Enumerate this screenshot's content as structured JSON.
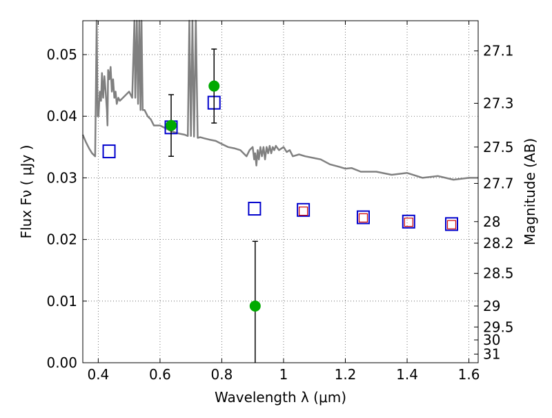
{
  "chart_data": {
    "type": "scatter",
    "xlabel": "Wavelength  λ (μm)",
    "ylabel": "Flux  Fν  ( μJy )",
    "ylabel_right": "Magnitude (AB)",
    "xlim": [
      0.35,
      1.63
    ],
    "ylim": [
      0.0,
      0.0555
    ],
    "grid": true,
    "x_ticks": [
      0.4,
      0.6,
      0.8,
      1.0,
      1.2,
      1.4,
      1.6
    ],
    "x_tick_labels": [
      "0.4",
      "0.6",
      "0.8",
      "1",
      "1.2",
      "1.4",
      "1.6"
    ],
    "y_ticks": [
      0.0,
      0.01,
      0.02,
      0.03,
      0.04,
      0.05
    ],
    "y_tick_labels": [
      "0.00",
      "0.01",
      "0.02",
      "0.03",
      "0.04",
      "0.05"
    ],
    "right_ticks": [
      {
        "flux": 0.0506,
        "label": "27.1"
      },
      {
        "flux": 0.0421,
        "label": "27.3"
      },
      {
        "flux": 0.035,
        "label": "27.5"
      },
      {
        "flux": 0.0291,
        "label": "27.7"
      },
      {
        "flux": 0.0229,
        "label": "28"
      },
      {
        "flux": 0.0194,
        "label": "28.2"
      },
      {
        "flux": 0.0145,
        "label": "28.5"
      },
      {
        "flux": 0.0092,
        "label": "29"
      },
      {
        "flux": 0.0058,
        "label": "29.5"
      },
      {
        "flux": 0.0037,
        "label": "30"
      },
      {
        "flux": 0.0014,
        "label": "31"
      }
    ],
    "colors": {
      "model": "#808080",
      "observed": "#00aa00",
      "synthetic_box": "#0000cc",
      "inner_box": "#cc0000",
      "errorbar": "#000000",
      "grid": "#555555"
    },
    "series": [
      {
        "kind": "observed",
        "points": [
          {
            "x": 0.636,
            "y": 0.0385,
            "err": 0.005
          },
          {
            "x": 0.775,
            "y": 0.0449,
            "err": 0.006
          },
          {
            "x": 0.908,
            "y": 0.0092,
            "err": 0.0105
          }
        ]
      },
      {
        "kind": "synthetic",
        "points": [
          {
            "x": 0.435,
            "y": 0.0343
          },
          {
            "x": 0.636,
            "y": 0.0382
          },
          {
            "x": 0.775,
            "y": 0.0422
          },
          {
            "x": 0.906,
            "y": 0.025
          },
          {
            "x": 1.064,
            "y": 0.0248
          },
          {
            "x": 1.258,
            "y": 0.0236
          },
          {
            "x": 1.405,
            "y": 0.0229
          },
          {
            "x": 1.544,
            "y": 0.0225
          }
        ]
      },
      {
        "kind": "synthetic_inner",
        "points": [
          {
            "x": 1.064,
            "y": 0.0246
          },
          {
            "x": 1.258,
            "y": 0.0235
          },
          {
            "x": 1.405,
            "y": 0.0228
          },
          {
            "x": 1.544,
            "y": 0.0224
          }
        ]
      },
      {
        "kind": "model",
        "points": [
          [
            0.35,
            0.037
          ],
          [
            0.36,
            0.0358
          ],
          [
            0.37,
            0.0348
          ],
          [
            0.38,
            0.034
          ],
          [
            0.39,
            0.0335
          ],
          [
            0.395,
            0.0555
          ],
          [
            0.398,
            0.04
          ],
          [
            0.401,
            0.04
          ],
          [
            0.405,
            0.044
          ],
          [
            0.409,
            0.0425
          ],
          [
            0.412,
            0.047
          ],
          [
            0.416,
            0.043
          ],
          [
            0.42,
            0.0465
          ],
          [
            0.424,
            0.044
          ],
          [
            0.428,
            0.041
          ],
          [
            0.43,
            0.0385
          ],
          [
            0.432,
            0.0475
          ],
          [
            0.436,
            0.046
          ],
          [
            0.44,
            0.048
          ],
          [
            0.444,
            0.044
          ],
          [
            0.448,
            0.046
          ],
          [
            0.452,
            0.043
          ],
          [
            0.456,
            0.044
          ],
          [
            0.46,
            0.042
          ],
          [
            0.465,
            0.043
          ],
          [
            0.47,
            0.0425
          ],
          [
            0.48,
            0.043
          ],
          [
            0.49,
            0.0435
          ],
          [
            0.5,
            0.044
          ],
          [
            0.51,
            0.043
          ],
          [
            0.517,
            0.0555
          ],
          [
            0.52,
            0.043
          ],
          [
            0.525,
            0.0555
          ],
          [
            0.529,
            0.042
          ],
          [
            0.533,
            0.0555
          ],
          [
            0.537,
            0.041
          ],
          [
            0.54,
            0.0555
          ],
          [
            0.544,
            0.041
          ],
          [
            0.55,
            0.041
          ],
          [
            0.56,
            0.04
          ],
          [
            0.57,
            0.0395
          ],
          [
            0.58,
            0.0385
          ],
          [
            0.59,
            0.0385
          ],
          [
            0.6,
            0.0385
          ],
          [
            0.62,
            0.038
          ],
          [
            0.64,
            0.0375
          ],
          [
            0.66,
            0.0372
          ],
          [
            0.68,
            0.037
          ],
          [
            0.69,
            0.0368
          ],
          [
            0.695,
            0.0555
          ],
          [
            0.7,
            0.0368
          ],
          [
            0.705,
            0.0555
          ],
          [
            0.71,
            0.0367
          ],
          [
            0.716,
            0.0555
          ],
          [
            0.722,
            0.0365
          ],
          [
            0.73,
            0.0366
          ],
          [
            0.745,
            0.0364
          ],
          [
            0.76,
            0.0362
          ],
          [
            0.78,
            0.036
          ],
          [
            0.8,
            0.0355
          ],
          [
            0.82,
            0.035
          ],
          [
            0.84,
            0.0348
          ],
          [
            0.86,
            0.0345
          ],
          [
            0.87,
            0.034
          ],
          [
            0.88,
            0.0335
          ],
          [
            0.89,
            0.0345
          ],
          [
            0.9,
            0.035
          ],
          [
            0.905,
            0.033
          ],
          [
            0.908,
            0.034
          ],
          [
            0.912,
            0.032
          ],
          [
            0.916,
            0.0345
          ],
          [
            0.92,
            0.033
          ],
          [
            0.925,
            0.035
          ],
          [
            0.93,
            0.0335
          ],
          [
            0.935,
            0.035
          ],
          [
            0.94,
            0.033
          ],
          [
            0.945,
            0.035
          ],
          [
            0.95,
            0.034
          ],
          [
            0.955,
            0.0352
          ],
          [
            0.96,
            0.034
          ],
          [
            0.965,
            0.035
          ],
          [
            0.97,
            0.0345
          ],
          [
            0.975,
            0.0352
          ],
          [
            0.985,
            0.0345
          ],
          [
            1.0,
            0.035
          ],
          [
            1.01,
            0.0342
          ],
          [
            1.02,
            0.0345
          ],
          [
            1.03,
            0.0335
          ],
          [
            1.05,
            0.0338
          ],
          [
            1.07,
            0.0335
          ],
          [
            1.1,
            0.0332
          ],
          [
            1.12,
            0.033
          ],
          [
            1.15,
            0.0322
          ],
          [
            1.18,
            0.0318
          ],
          [
            1.2,
            0.0315
          ],
          [
            1.22,
            0.0316
          ],
          [
            1.25,
            0.031
          ],
          [
            1.3,
            0.031
          ],
          [
            1.35,
            0.0305
          ],
          [
            1.4,
            0.0308
          ],
          [
            1.45,
            0.03
          ],
          [
            1.5,
            0.0303
          ],
          [
            1.55,
            0.0297
          ],
          [
            1.6,
            0.03
          ],
          [
            1.63,
            0.03
          ]
        ]
      }
    ]
  }
}
